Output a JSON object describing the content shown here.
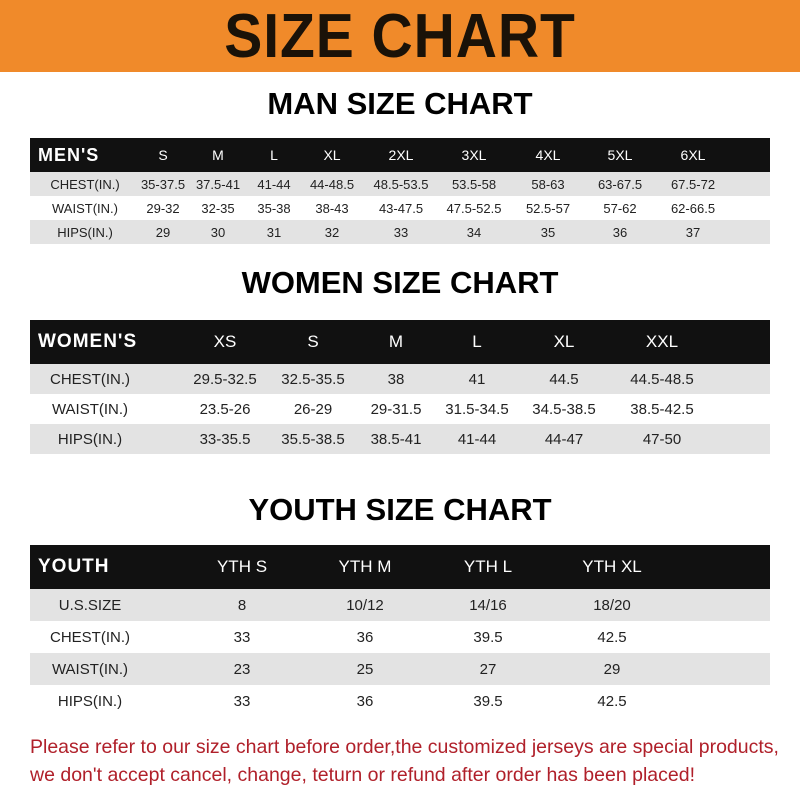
{
  "banner": {
    "title": "SIZE CHART",
    "color": "#f08a2a"
  },
  "men": {
    "title": "MAN SIZE CHART",
    "header": [
      "MEN'S",
      "S",
      "M",
      "L",
      "XL",
      "2XL",
      "3XL",
      "4XL",
      "5XL",
      "6XL"
    ],
    "rows": [
      [
        "CHEST(IN.)",
        "35-37.5",
        "37.5-41",
        "41-44",
        "44-48.5",
        "48.5-53.5",
        "53.5-58",
        "58-63",
        "63-67.5",
        "67.5-72"
      ],
      [
        "WAIST(IN.)",
        "29-32",
        "32-35",
        "35-38",
        "38-43",
        "43-47.5",
        "47.5-52.5",
        "52.5-57",
        "57-62",
        "62-66.5"
      ],
      [
        "HIPS(IN.)",
        "29",
        "30",
        "31",
        "32",
        "33",
        "34",
        "35",
        "36",
        "37"
      ]
    ]
  },
  "women": {
    "title": "WOMEN SIZE CHART",
    "header": [
      "WOMEN'S",
      "XS",
      "S",
      "M",
      "L",
      "XL",
      "XXL"
    ],
    "rows": [
      [
        "CHEST(IN.)",
        "29.5-32.5",
        "32.5-35.5",
        "38",
        "41",
        "44.5",
        "44.5-48.5"
      ],
      [
        "WAIST(IN.)",
        "23.5-26",
        "26-29",
        "29-31.5",
        "31.5-34.5",
        "34.5-38.5",
        "38.5-42.5"
      ],
      [
        "HIPS(IN.)",
        "33-35.5",
        "35.5-38.5",
        "38.5-41",
        "41-44",
        "44-47",
        "47-50"
      ]
    ]
  },
  "youth": {
    "title": "YOUTH SIZE CHART",
    "header": [
      "YOUTH",
      "YTH S",
      "YTH M",
      "YTH L",
      "YTH XL"
    ],
    "rows": [
      [
        "U.S.SIZE",
        "8",
        "10/12",
        "14/16",
        "18/20"
      ],
      [
        "CHEST(IN.)",
        "33",
        "36",
        "39.5",
        "42.5"
      ],
      [
        "WAIST(IN.)",
        "23",
        "25",
        "27",
        "29"
      ],
      [
        "HIPS(IN.)",
        "33",
        "36",
        "39.5",
        "42.5"
      ]
    ]
  },
  "note": {
    "line1": "Please refer to our size chart before order,the customized jerseys are special products,",
    "line2": "we don't accept cancel, change, teturn or refund after order has been placed!",
    "color": "#b0202a"
  }
}
